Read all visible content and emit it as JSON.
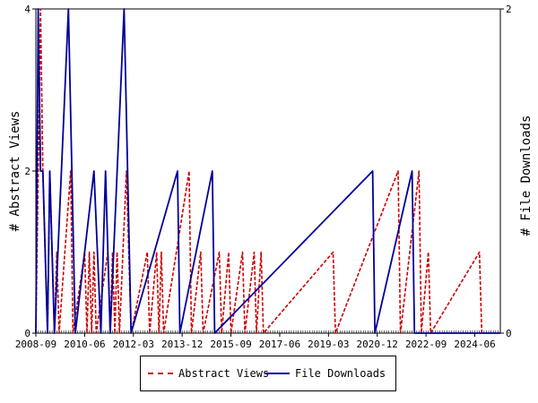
{
  "chart_data": {
    "type": "line",
    "x_tick_labels": [
      "2008-09",
      "2010-06",
      "2012-03",
      "2013-12",
      "2015-09",
      "2017-06",
      "2019-03",
      "2020-12",
      "2022-09",
      "2024-06"
    ],
    "x_range": [
      "2008-09",
      "2025-05"
    ],
    "ylabel_left": "# Abstract Views",
    "ylabel_right": "# File Downloads",
    "ylim_left": [
      0,
      4
    ],
    "ylim_right": [
      0,
      2
    ],
    "y_ticks_left": [
      0,
      2,
      4
    ],
    "y_ticks_right": [
      0,
      2
    ],
    "legend_placement": "bottom",
    "series": [
      {
        "name": "Abstract Views",
        "axis": "left",
        "color": "#cc0000",
        "style": "dashed",
        "points": [
          [
            "2008-09",
            0
          ],
          [
            "2008-10",
            2
          ],
          [
            "2008-11",
            4
          ],
          [
            "2008-12",
            2
          ],
          [
            "2009-01",
            1
          ],
          [
            "2009-02",
            0
          ],
          [
            "2009-03",
            2
          ],
          [
            "2009-04",
            1
          ],
          [
            "2009-05",
            0
          ],
          [
            "2009-06",
            1
          ],
          [
            "2009-07",
            0
          ],
          [
            "2009-12",
            2
          ],
          [
            "2010-01",
            0
          ],
          [
            "2010-06",
            1
          ],
          [
            "2010-07",
            0
          ],
          [
            "2010-08",
            1
          ],
          [
            "2010-09",
            0
          ],
          [
            "2010-10",
            1
          ],
          [
            "2010-11",
            0
          ],
          [
            "2011-04",
            1
          ],
          [
            "2011-05",
            0
          ],
          [
            "2011-06",
            1
          ],
          [
            "2011-07",
            0
          ],
          [
            "2011-08",
            1
          ],
          [
            "2011-09",
            0
          ],
          [
            "2011-12",
            2
          ],
          [
            "2012-01",
            1
          ],
          [
            "2012-02",
            0
          ],
          [
            "2012-09",
            1
          ],
          [
            "2012-10",
            0
          ],
          [
            "2013-01",
            1
          ],
          [
            "2013-02",
            0
          ],
          [
            "2013-03",
            1
          ],
          [
            "2013-04",
            0
          ],
          [
            "2014-03",
            2
          ],
          [
            "2014-04",
            0
          ],
          [
            "2014-08",
            1
          ],
          [
            "2014-09",
            0
          ],
          [
            "2015-04",
            1
          ],
          [
            "2015-05",
            0
          ],
          [
            "2015-08",
            1
          ],
          [
            "2015-09",
            0
          ],
          [
            "2016-02",
            1
          ],
          [
            "2016-03",
            0
          ],
          [
            "2016-07",
            1
          ],
          [
            "2016-08",
            0
          ],
          [
            "2016-10",
            1
          ],
          [
            "2016-11",
            0
          ],
          [
            "2019-05",
            1
          ],
          [
            "2019-06",
            0
          ],
          [
            "2021-09",
            2
          ],
          [
            "2021-10",
            0
          ],
          [
            "2022-06",
            2
          ],
          [
            "2022-07",
            0
          ],
          [
            "2022-10",
            1
          ],
          [
            "2022-11",
            0
          ],
          [
            "2024-08",
            1
          ],
          [
            "2024-09",
            0
          ]
        ]
      },
      {
        "name": "File Downloads",
        "axis": "right",
        "color": "#000099",
        "style": "solid",
        "points": [
          [
            "2008-09",
            0
          ],
          [
            "2008-10",
            2
          ],
          [
            "2008-11",
            1
          ],
          [
            "2008-12",
            1
          ],
          [
            "2009-01",
            0.5
          ],
          [
            "2009-02",
            0
          ],
          [
            "2009-03",
            1
          ],
          [
            "2009-04",
            0.5
          ],
          [
            "2009-05",
            0
          ],
          [
            "2009-08",
            1
          ],
          [
            "2009-11",
            2
          ],
          [
            "2010-02",
            0
          ],
          [
            "2010-10",
            1
          ],
          [
            "2011-01",
            0
          ],
          [
            "2011-03",
            1
          ],
          [
            "2011-05",
            0
          ],
          [
            "2011-11",
            2
          ],
          [
            "2012-02",
            0
          ],
          [
            "2012-12",
            0.5
          ],
          [
            "2013-10",
            1
          ],
          [
            "2013-11",
            0
          ],
          [
            "2014-06",
            0.5
          ],
          [
            "2015-01",
            1
          ],
          [
            "2015-02",
            0
          ],
          [
            "2020-10",
            1
          ],
          [
            "2020-11",
            0
          ],
          [
            "2022-03",
            1
          ],
          [
            "2022-04",
            0
          ],
          [
            "2025-05",
            0
          ]
        ]
      }
    ]
  }
}
